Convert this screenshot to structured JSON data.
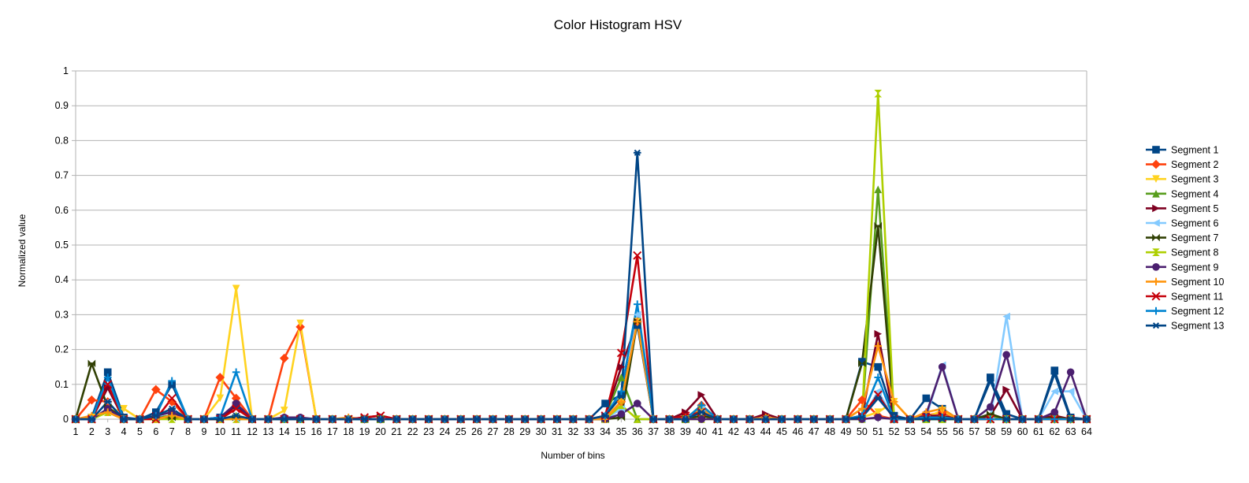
{
  "chart_data": {
    "type": "line",
    "title": "Color Histogram HSV",
    "xlabel": "Number of bins",
    "ylabel": "Normalized value",
    "categories": [
      "1",
      "2",
      "3",
      "4",
      "5",
      "6",
      "7",
      "8",
      "9",
      "10",
      "11",
      "12",
      "13",
      "14",
      "15",
      "16",
      "17",
      "18",
      "19",
      "20",
      "21",
      "22",
      "23",
      "24",
      "25",
      "26",
      "27",
      "28",
      "29",
      "30",
      "31",
      "32",
      "33",
      "34",
      "35",
      "36",
      "37",
      "38",
      "39",
      "40",
      "41",
      "42",
      "43",
      "44",
      "45",
      "46",
      "47",
      "48",
      "49",
      "50",
      "51",
      "52",
      "53",
      "54",
      "55",
      "56",
      "57",
      "58",
      "59",
      "60",
      "61",
      "62",
      "63",
      "64"
    ],
    "ylim": [
      0,
      1
    ],
    "yticks": [
      "0",
      "0.1",
      "0.2",
      "0.3",
      "0.4",
      "0.5",
      "0.6",
      "0.7",
      "0.8",
      "0.9",
      "1"
    ],
    "grid": true,
    "legend_position": "right",
    "series": [
      {
        "name": "Segment 1",
        "color": "#004586",
        "marker": "square",
        "values": [
          0,
          0.005,
          0.135,
          0.005,
          0,
          0.02,
          0.1,
          0,
          0,
          0.005,
          0.04,
          0,
          0,
          0,
          0,
          0,
          0,
          0,
          0,
          0,
          0,
          0,
          0,
          0,
          0,
          0,
          0,
          0,
          0,
          0,
          0,
          0,
          0,
          0.045,
          0.07,
          0.27,
          0,
          0,
          0,
          0.03,
          0,
          0,
          0,
          0,
          0,
          0,
          0,
          0,
          0,
          0.165,
          0.15,
          0.01,
          0,
          0.06,
          0.03,
          0,
          0,
          0.12,
          0.015,
          0,
          0,
          0.14,
          0.005,
          0
        ]
      },
      {
        "name": "Segment 2",
        "color": "#ff420e",
        "marker": "diamond",
        "values": [
          0,
          0.055,
          0.05,
          0,
          0,
          0.085,
          0.05,
          0,
          0,
          0.12,
          0.06,
          0,
          0,
          0.175,
          0.265,
          0,
          0,
          0,
          0,
          0,
          0,
          0,
          0,
          0,
          0,
          0,
          0,
          0,
          0,
          0,
          0,
          0,
          0,
          0.005,
          0.05,
          0.28,
          0,
          0,
          0,
          0.04,
          0,
          0,
          0,
          0,
          0,
          0,
          0,
          0,
          0,
          0.055,
          0.01,
          0,
          0,
          0.01,
          0.02,
          0,
          0,
          0,
          0,
          0,
          0,
          0,
          0,
          0
        ]
      },
      {
        "name": "Segment 3",
        "color": "#ffd320",
        "marker": "triangle-down",
        "values": [
          0,
          0.005,
          0.02,
          0.03,
          0,
          0.005,
          0.005,
          0,
          0,
          0.06,
          0.375,
          0,
          0,
          0.025,
          0.275,
          0,
          0,
          0,
          0,
          0,
          0,
          0,
          0,
          0,
          0,
          0,
          0,
          0,
          0,
          0,
          0,
          0,
          0,
          0.005,
          0.05,
          0.28,
          0,
          0,
          0,
          0.03,
          0,
          0,
          0,
          0.005,
          0,
          0,
          0,
          0,
          0,
          0.005,
          0.02,
          0.05,
          0,
          0.005,
          0.025,
          0,
          0,
          0,
          0,
          0,
          0,
          0,
          0,
          0
        ]
      },
      {
        "name": "Segment 4",
        "color": "#579d1c",
        "marker": "triangle-up",
        "values": [
          0,
          0,
          0.03,
          0,
          0,
          0.005,
          0.01,
          0,
          0,
          0,
          0.01,
          0,
          0,
          0,
          0,
          0,
          0,
          0,
          0,
          0,
          0,
          0,
          0,
          0,
          0,
          0,
          0,
          0,
          0,
          0,
          0,
          0,
          0,
          0.01,
          0.12,
          0,
          0,
          0,
          0,
          0.04,
          0,
          0,
          0,
          0,
          0,
          0,
          0,
          0,
          0,
          0.005,
          0.66,
          0,
          0,
          0,
          0,
          0,
          0,
          0.01,
          0,
          0,
          0,
          0,
          0,
          0
        ]
      },
      {
        "name": "Segment 5",
        "color": "#7e0021",
        "marker": "triangle-right",
        "values": [
          0,
          0,
          0.09,
          0,
          0,
          0.01,
          0.02,
          0,
          0,
          0,
          0.04,
          0,
          0,
          0,
          0,
          0,
          0,
          0,
          0.005,
          0.01,
          0,
          0,
          0,
          0,
          0,
          0,
          0,
          0,
          0,
          0,
          0,
          0,
          0,
          0.01,
          0.15,
          0.28,
          0,
          0,
          0.02,
          0.07,
          0,
          0,
          0,
          0.015,
          0,
          0,
          0,
          0,
          0,
          0.01,
          0.245,
          0,
          0,
          0.01,
          0.01,
          0,
          0,
          0.01,
          0.085,
          0,
          0,
          0.01,
          0,
          0
        ]
      },
      {
        "name": "Segment 6",
        "color": "#83caff",
        "marker": "triangle-left",
        "values": [
          0,
          0,
          0.05,
          0,
          0,
          0,
          0.03,
          0,
          0,
          0,
          0,
          0,
          0,
          0,
          0,
          0,
          0,
          0,
          0,
          0,
          0,
          0,
          0,
          0,
          0,
          0,
          0,
          0,
          0,
          0,
          0,
          0,
          0,
          0,
          0.03,
          0.3,
          0,
          0,
          0,
          0.03,
          0,
          0,
          0,
          0,
          0,
          0,
          0,
          0,
          0,
          0,
          0.08,
          0,
          0,
          0.005,
          0.155,
          0,
          0,
          0,
          0.295,
          0,
          0,
          0.08,
          0.08,
          0
        ]
      },
      {
        "name": "Segment 7",
        "color": "#314004",
        "marker": "bowtie",
        "values": [
          0,
          0.16,
          0.035,
          0,
          0,
          0.005,
          0.005,
          0,
          0,
          0,
          0.005,
          0,
          0,
          0,
          0,
          0,
          0,
          0,
          0,
          0,
          0,
          0,
          0,
          0,
          0,
          0,
          0,
          0,
          0,
          0,
          0,
          0,
          0,
          0,
          0.005,
          0.28,
          0,
          0,
          0,
          0.01,
          0,
          0,
          0,
          0,
          0,
          0,
          0,
          0,
          0,
          0.16,
          0.555,
          0,
          0,
          0,
          0,
          0,
          0,
          0.015,
          0,
          0,
          0,
          0.005,
          0,
          0
        ]
      },
      {
        "name": "Segment 8",
        "color": "#aecf00",
        "marker": "hourglass",
        "values": [
          0,
          0,
          0.02,
          0,
          0,
          0,
          0,
          0,
          0,
          0,
          0,
          0,
          0,
          0,
          0,
          0,
          0,
          0,
          0,
          0,
          0,
          0,
          0,
          0,
          0,
          0,
          0,
          0,
          0,
          0,
          0,
          0,
          0,
          0,
          0.04,
          0,
          0,
          0,
          0,
          0,
          0,
          0,
          0,
          0,
          0,
          0,
          0,
          0,
          0,
          0,
          0.935,
          0,
          0,
          0,
          0,
          0,
          0,
          0,
          0,
          0,
          0,
          0,
          0,
          0
        ]
      },
      {
        "name": "Segment 9",
        "color": "#4b1f6f",
        "marker": "circle",
        "values": [
          0,
          0,
          0.03,
          0,
          0,
          0.01,
          0.02,
          0,
          0,
          0.005,
          0.045,
          0,
          0,
          0.005,
          0.005,
          0,
          0,
          0,
          0,
          0,
          0,
          0,
          0,
          0,
          0,
          0,
          0,
          0,
          0,
          0,
          0,
          0,
          0,
          0,
          0.015,
          0.045,
          0,
          0,
          0,
          0,
          0,
          0,
          0,
          0,
          0,
          0,
          0,
          0,
          0,
          0,
          0.005,
          0,
          0,
          0.015,
          0.15,
          0,
          0,
          0.035,
          0.185,
          0,
          0,
          0.02,
          0.135,
          0
        ]
      },
      {
        "name": "Segment 10",
        "color": "#ff950e",
        "marker": "star",
        "values": [
          0,
          0.01,
          0.02,
          0,
          0,
          0,
          0.01,
          0,
          0,
          0,
          0,
          0,
          0,
          0,
          0,
          0,
          0,
          0.005,
          0,
          0,
          0,
          0,
          0,
          0,
          0,
          0,
          0,
          0,
          0,
          0,
          0,
          0,
          0,
          0,
          0.05,
          0.28,
          0,
          0,
          0.005,
          0.03,
          0,
          0,
          0,
          0.005,
          0,
          0,
          0,
          0,
          0,
          0.03,
          0.21,
          0.05,
          0,
          0.02,
          0.03,
          0,
          0,
          0,
          0,
          0,
          0,
          0,
          0,
          0
        ]
      },
      {
        "name": "Segment 11",
        "color": "#c5000b",
        "marker": "x",
        "values": [
          0,
          0,
          0.1,
          0,
          0,
          0,
          0.06,
          0,
          0,
          0,
          0.03,
          0,
          0,
          0,
          0,
          0,
          0,
          0,
          0.005,
          0.01,
          0,
          0,
          0,
          0,
          0,
          0,
          0,
          0,
          0,
          0,
          0,
          0,
          0,
          0.01,
          0.19,
          0.47,
          0,
          0,
          0.01,
          0.02,
          0,
          0,
          0,
          0,
          0,
          0,
          0,
          0,
          0,
          0.01,
          0.07,
          0,
          0,
          0.005,
          0.005,
          0,
          0,
          0,
          0,
          0,
          0,
          0,
          0,
          0
        ]
      },
      {
        "name": "Segment 12",
        "color": "#0084d1",
        "marker": "plus",
        "values": [
          0,
          0,
          0.12,
          0,
          0,
          0.01,
          0.11,
          0,
          0,
          0.005,
          0.135,
          0,
          0,
          0,
          0,
          0,
          0,
          0,
          0,
          0,
          0,
          0,
          0,
          0,
          0,
          0,
          0,
          0,
          0,
          0,
          0,
          0,
          0,
          0.01,
          0.08,
          0.33,
          0,
          0,
          0,
          0.04,
          0,
          0,
          0,
          0,
          0,
          0,
          0,
          0,
          0,
          0.01,
          0.12,
          0,
          0,
          0.005,
          0.005,
          0,
          0,
          0,
          0,
          0,
          0,
          0,
          0,
          0
        ]
      },
      {
        "name": "Segment 13",
        "color": "#004586",
        "marker": "asterisk",
        "values": [
          0,
          0,
          0.05,
          0,
          0,
          0.01,
          0.03,
          0,
          0,
          0,
          0.01,
          0,
          0,
          0,
          0,
          0,
          0,
          0,
          0,
          0,
          0,
          0,
          0,
          0,
          0,
          0,
          0,
          0,
          0,
          0,
          0,
          0,
          0,
          0.01,
          0.065,
          0.765,
          0,
          0,
          0,
          0.02,
          0,
          0,
          0,
          0,
          0,
          0,
          0,
          0,
          0,
          0.005,
          0.06,
          0.005,
          0,
          0,
          0,
          0,
          0,
          0.11,
          0,
          0,
          0,
          0.13,
          0,
          0
        ]
      }
    ]
  }
}
